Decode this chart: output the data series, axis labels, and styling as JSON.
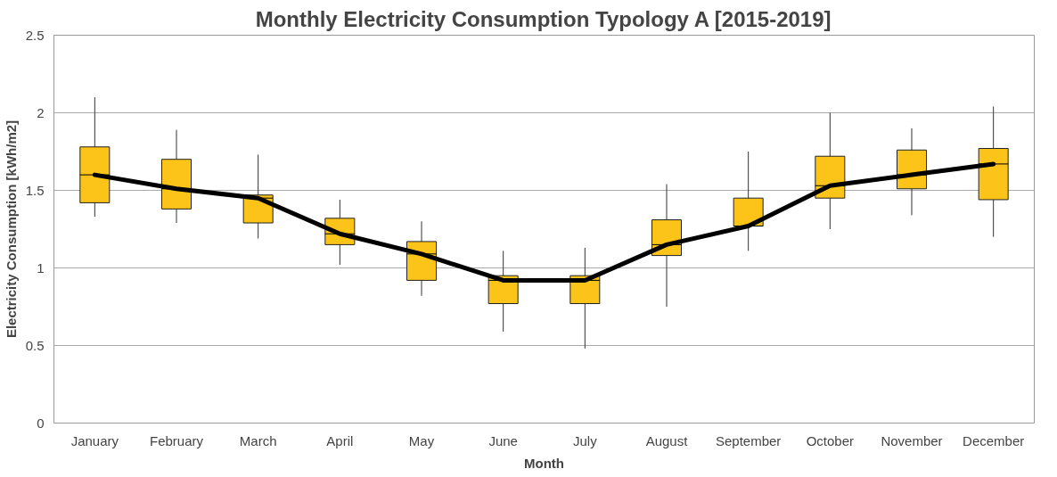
{
  "chart_data": {
    "type": "box",
    "title": "Monthly Electricity Consumption Typology A [2015-2019]",
    "xlabel": "Month",
    "ylabel": "Electricity Consumption [kWh/m2]",
    "categories": [
      "January",
      "February",
      "March",
      "April",
      "May",
      "June",
      "July",
      "August",
      "September",
      "October",
      "November",
      "December"
    ],
    "ylim": [
      0,
      2.5
    ],
    "yticks": [
      0,
      0.5,
      1,
      1.5,
      2,
      2.5
    ],
    "grid": "y",
    "series": [
      {
        "color": "#fcc419",
        "boxes": [
          {
            "low": 1.33,
            "q1": 1.42,
            "median": 1.6,
            "q3": 1.78,
            "high": 2.1
          },
          {
            "low": 1.29,
            "q1": 1.38,
            "median": 1.51,
            "q3": 1.7,
            "high": 1.89
          },
          {
            "low": 1.19,
            "q1": 1.29,
            "median": 1.45,
            "q3": 1.47,
            "high": 1.73
          },
          {
            "low": 1.02,
            "q1": 1.15,
            "median": 1.22,
            "q3": 1.32,
            "high": 1.44
          },
          {
            "low": 0.82,
            "q1": 0.92,
            "median": 1.09,
            "q3": 1.17,
            "high": 1.3
          },
          {
            "low": 0.59,
            "q1": 0.77,
            "median": 0.92,
            "q3": 0.95,
            "high": 1.11
          },
          {
            "low": 0.48,
            "q1": 0.77,
            "median": 0.92,
            "q3": 0.95,
            "high": 1.13
          },
          {
            "low": 0.75,
            "q1": 1.08,
            "median": 1.15,
            "q3": 1.31,
            "high": 1.54
          },
          {
            "low": 1.11,
            "q1": 1.27,
            "median": 1.27,
            "q3": 1.45,
            "high": 1.75
          },
          {
            "low": 1.25,
            "q1": 1.45,
            "median": 1.53,
            "q3": 1.72,
            "high": 2.0
          },
          {
            "low": 1.34,
            "q1": 1.51,
            "median": 1.6,
            "q3": 1.76,
            "high": 1.9
          },
          {
            "low": 1.2,
            "q1": 1.44,
            "median": 1.67,
            "q3": 1.77,
            "high": 2.04
          }
        ]
      },
      {
        "type": "line",
        "color": "#000000",
        "values": [
          1.6,
          1.51,
          1.45,
          1.22,
          1.09,
          0.92,
          0.92,
          1.15,
          1.27,
          1.53,
          1.6,
          1.67
        ]
      }
    ]
  }
}
